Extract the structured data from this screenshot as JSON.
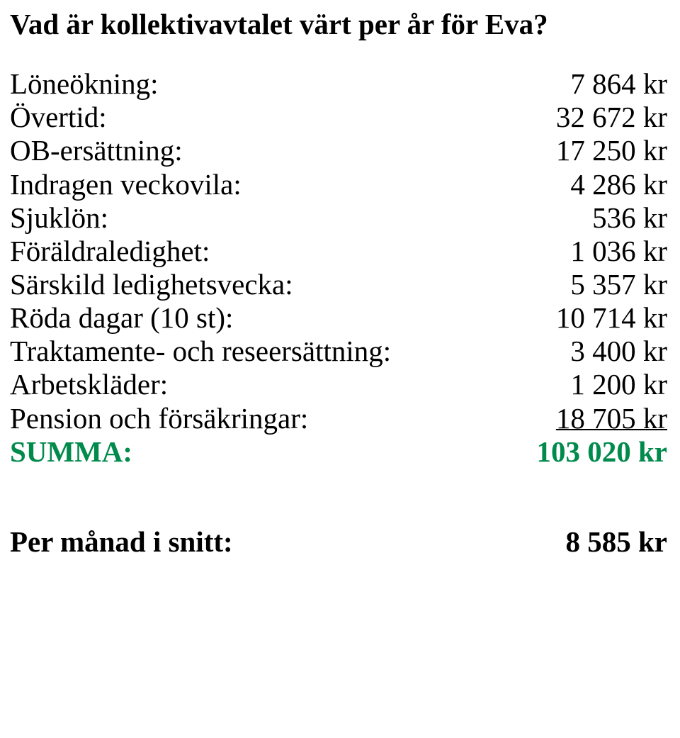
{
  "colors": {
    "text": "#000000",
    "background": "#ffffff",
    "summa": "#008a4b"
  },
  "typography": {
    "font_family": "Times New Roman",
    "title_size_pt": 31,
    "body_size_pt": 31,
    "title_weight": "bold",
    "summa_weight": "bold",
    "per_month_weight": "bold"
  },
  "title": "Vad är kollektivavtalet värt per år för Eva?",
  "rows": [
    {
      "label": "Löneökning:",
      "value": "7 864 kr"
    },
    {
      "label": "Övertid:",
      "value": "32 672 kr"
    },
    {
      "label": "OB-ersättning:",
      "value": "17 250 kr"
    },
    {
      "label": "Indragen veckovila:",
      "value": "4 286 kr"
    },
    {
      "label": "Sjuklön:",
      "value": "536 kr"
    },
    {
      "label": "Föräldraledighet:",
      "value": "1 036 kr"
    },
    {
      "label": "Särskild ledighetsvecka:",
      "value": "5 357 kr"
    },
    {
      "label": "Röda dagar (10 st):",
      "value": "10 714 kr"
    },
    {
      "label": "Traktamente- och reseersättning:",
      "value": "3 400 kr"
    },
    {
      "label": "Arbetskläder:",
      "value": "1 200 kr"
    },
    {
      "label": "Pension och försäkringar:",
      "value": "18 705 kr",
      "underline": true
    }
  ],
  "summa": {
    "label": "SUMMA:",
    "value": "103 020 kr"
  },
  "per_month": {
    "label": "Per månad i snitt:",
    "value": "8 585 kr"
  }
}
